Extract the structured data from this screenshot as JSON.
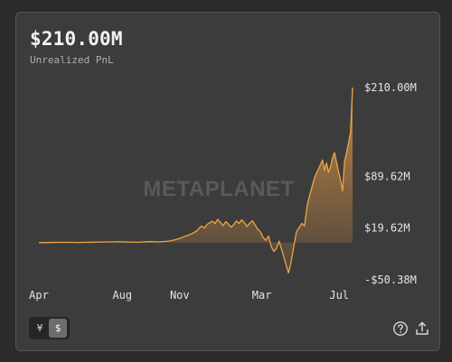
{
  "header": {
    "value": "$210.00M",
    "subtitle": "Unrealized PnL"
  },
  "watermark": "METAPLANET",
  "toggle": {
    "yen_label": "¥",
    "usd_label": "$",
    "selected": "usd"
  },
  "icons": {
    "help": "question-circle-icon",
    "share": "share-upload-icon"
  },
  "colors": {
    "line": "#f0a443",
    "fill_top": "#c98b45",
    "card_bg": "#3c3c3c"
  },
  "chart_data": {
    "type": "area",
    "ylim": [
      -50.38,
      210.0
    ],
    "y_ticks": [
      {
        "value": 210.0,
        "label": "$210.00M"
      },
      {
        "value": 89.62,
        "label": "$89.62M"
      },
      {
        "value": 19.62,
        "label": "$19.62M"
      },
      {
        "value": -50.38,
        "label": "-$50.38M"
      }
    ],
    "x_ticks": [
      {
        "x": 0,
        "label": "Apr"
      },
      {
        "x": 125,
        "label": "Aug"
      },
      {
        "x": 211,
        "label": "Nov"
      },
      {
        "x": 334,
        "label": "Mar"
      },
      {
        "x": 450,
        "label": "Jul"
      }
    ],
    "series": [
      {
        "points": [
          [
            0,
            0
          ],
          [
            20,
            0.3
          ],
          [
            40,
            0.5
          ],
          [
            60,
            0.2
          ],
          [
            80,
            0.6
          ],
          [
            100,
            1.0
          ],
          [
            120,
            1.2
          ],
          [
            135,
            0.8
          ],
          [
            150,
            0.5
          ],
          [
            165,
            1.5
          ],
          [
            180,
            1.0
          ],
          [
            195,
            2.0
          ],
          [
            205,
            4.0
          ],
          [
            215,
            7.0
          ],
          [
            220,
            9.0
          ],
          [
            228,
            11.5
          ],
          [
            236,
            15.5
          ],
          [
            240,
            19.5
          ],
          [
            244,
            22.5
          ],
          [
            248,
            20.0
          ],
          [
            252,
            24.5
          ],
          [
            256,
            27.0
          ],
          [
            260,
            29.0
          ],
          [
            264,
            26.0
          ],
          [
            268,
            31.5
          ],
          [
            272,
            27.5
          ],
          [
            276,
            23.0
          ],
          [
            280,
            28.5
          ],
          [
            284,
            25.0
          ],
          [
            288,
            21.0
          ],
          [
            292,
            24.5
          ],
          [
            296,
            29.5
          ],
          [
            300,
            26.0
          ],
          [
            304,
            31.0
          ],
          [
            308,
            27.0
          ],
          [
            312,
            22.0
          ],
          [
            316,
            26.5
          ],
          [
            320,
            29.5
          ],
          [
            324,
            24.0
          ],
          [
            328,
            18.0
          ],
          [
            332,
            14.5
          ],
          [
            336,
            7.0
          ],
          [
            340,
            3.0
          ],
          [
            344,
            9.0
          ],
          [
            348,
            -5.0
          ],
          [
            352,
            -12.0
          ],
          [
            356,
            -8.0
          ],
          [
            360,
            2.0
          ],
          [
            364,
            -10.0
          ],
          [
            368,
            -22.0
          ],
          [
            371,
            -32.0
          ],
          [
            374,
            -41.0
          ],
          [
            377,
            -30.0
          ],
          [
            380,
            -15.0
          ],
          [
            383,
            0.0
          ],
          [
            386,
            15.0
          ],
          [
            390,
            20.5
          ],
          [
            394,
            26.0
          ],
          [
            398,
            22.5
          ],
          [
            402,
            50.5
          ],
          [
            406,
            65.0
          ],
          [
            410,
            78.0
          ],
          [
            413,
            88.0
          ],
          [
            416,
            94.0
          ],
          [
            419,
            100.0
          ],
          [
            422,
            106.0
          ],
          [
            425,
            112.0
          ],
          [
            428,
            98.0
          ],
          [
            431,
            108.0
          ],
          [
            434,
            95.0
          ],
          [
            437,
            103.0
          ],
          [
            440,
            115.0
          ],
          [
            443,
            122.0
          ],
          [
            446,
            109.0
          ],
          [
            449,
            96.0
          ],
          [
            452,
            85.0
          ],
          [
            455,
            70.0
          ],
          [
            458,
            110.0
          ],
          [
            461,
            122.0
          ],
          [
            464,
            135.0
          ],
          [
            467,
            150.0
          ],
          [
            470,
            210.0
          ]
        ]
      }
    ]
  }
}
